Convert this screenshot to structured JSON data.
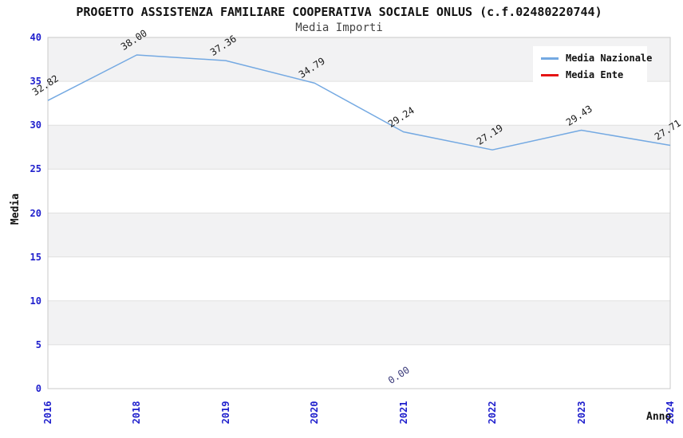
{
  "header": {
    "title": "PROGETTO ASSISTENZA FAMILIARE COOPERATIVA SOCIALE ONLUS (c.f.02480220744)",
    "subtitle": "Media Importi"
  },
  "chart_data": {
    "type": "line",
    "title": "PROGETTO ASSISTENZA FAMILIARE COOPERATIVA SOCIALE ONLUS (c.f.02480220744)",
    "subtitle": "Media Importi",
    "xlabel": "Anno",
    "ylabel": "Media",
    "categories": [
      "2016",
      "2018",
      "2019",
      "2020",
      "2021",
      "2022",
      "2023",
      "2024"
    ],
    "series": [
      {
        "name": "Media Nazionale",
        "color": "#74a9e2",
        "label_color": "#1a1a1a",
        "values": [
          32.82,
          38.0,
          37.36,
          34.79,
          29.24,
          27.19,
          29.43,
          27.71
        ]
      },
      {
        "name": "Media Ente",
        "color": "#e51414",
        "label_color": "#383878",
        "values": [
          null,
          null,
          null,
          null,
          0.0,
          null,
          null,
          null
        ]
      }
    ],
    "ylim": [
      0,
      40
    ],
    "ytick_step": 5,
    "grid": true,
    "legend_position": "top-right",
    "colors": {
      "axis_tick_text": "#2020cd",
      "band_fill": "#f2f2f3",
      "grid_line": "#e0e0e0",
      "plot_border": "#c9c9c9",
      "background": "#ffffff"
    }
  }
}
